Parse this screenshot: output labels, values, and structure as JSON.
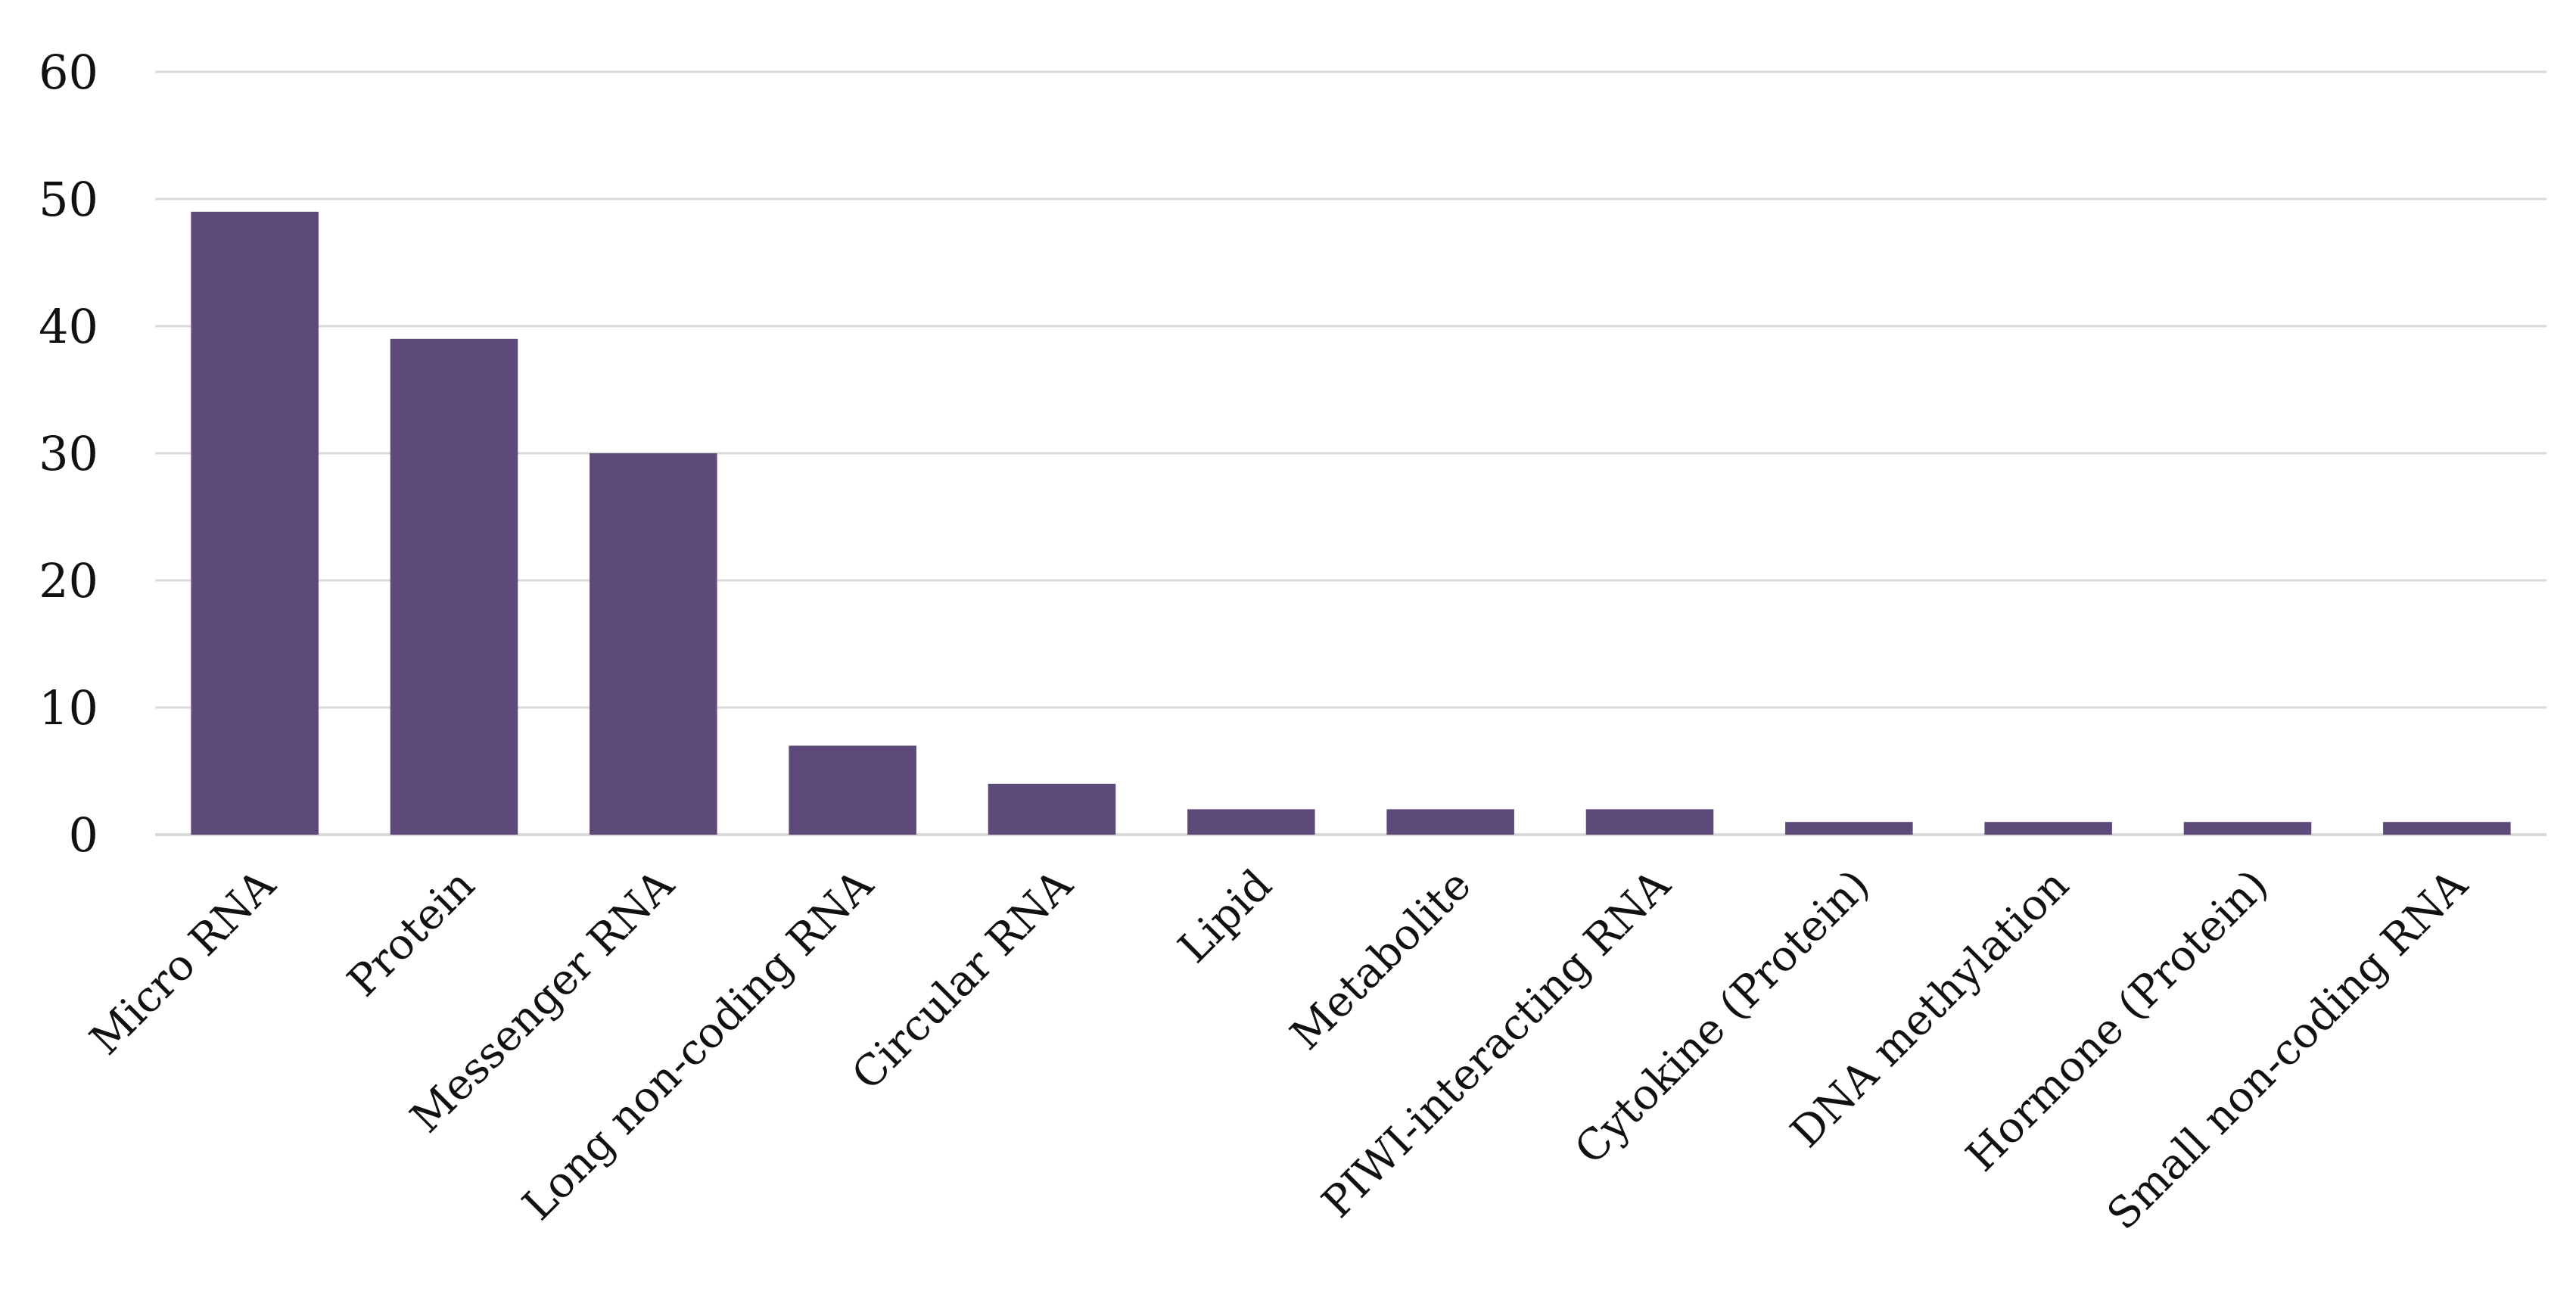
{
  "chart_data": {
    "type": "bar",
    "title": "",
    "xlabel": "",
    "ylabel": "",
    "categories": [
      "Micro RNA",
      "Protein",
      "Messenger RNA",
      "Long non-coding RNA",
      "Circular RNA",
      "Lipid",
      "Metabolite",
      "PIWI-interacting RNA",
      "Cytokine (Protein)",
      "DNA methylation",
      "Hormone (Protein)",
      "Small non-coding RNA"
    ],
    "values": [
      49,
      39,
      30,
      7,
      4,
      2,
      2,
      2,
      1,
      1,
      1,
      1
    ],
    "ylim": [
      0,
      60
    ],
    "yticks": [
      0,
      10,
      20,
      30,
      40,
      50,
      60
    ],
    "grid": true,
    "legend": "none",
    "bar_color": "#5e4a7a",
    "grid_color": "#d9d9d9"
  }
}
